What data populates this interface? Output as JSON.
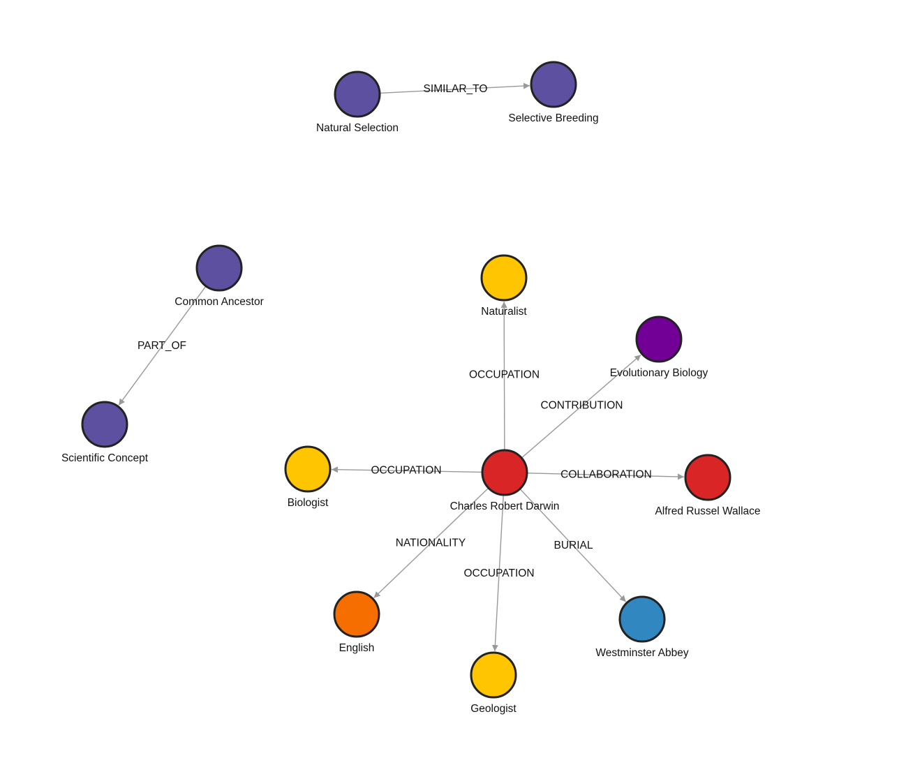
{
  "nodes": [
    {
      "label": "Natural Selection"
    },
    {
      "label": "Selective Breeding"
    },
    {
      "label": "Common Ancestor"
    },
    {
      "label": "Scientific Concept"
    },
    {
      "label": "Naturalist"
    },
    {
      "label": "Evolutionary Biology"
    },
    {
      "label": "Biologist"
    },
    {
      "label": "Charles Robert Darwin"
    },
    {
      "label": "Alfred Russel Wallace"
    },
    {
      "label": "English"
    },
    {
      "label": "Geologist"
    },
    {
      "label": "Westminster Abbey"
    }
  ],
  "edges": [
    {
      "label": "SIMILAR_TO"
    },
    {
      "label": "PART_OF"
    },
    {
      "label": "OCCUPATION"
    },
    {
      "label": "CONTRIBUTION"
    },
    {
      "label": "OCCUPATION"
    },
    {
      "label": "COLLABORATION"
    },
    {
      "label": "NATIONALITY"
    },
    {
      "label": "OCCUPATION"
    },
    {
      "label": "BURIAL"
    }
  ]
}
